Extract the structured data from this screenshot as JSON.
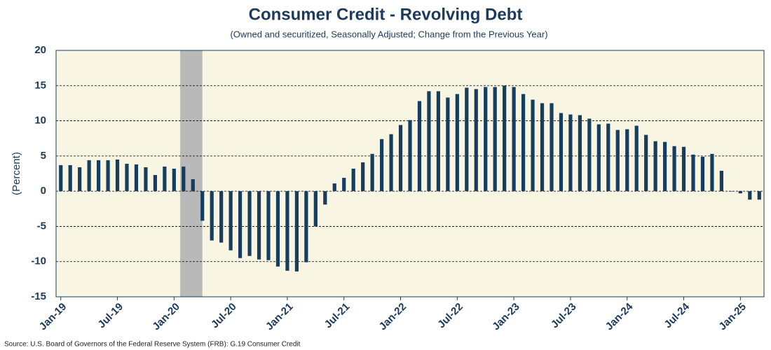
{
  "chart_data": {
    "type": "bar",
    "title": "Consumer Credit - Revolving Debt",
    "subtitle": "(Owned and securitized, Seasonally Adjusted; Change from the Previous Year)",
    "y_label": "(Percent)",
    "source": "Source: U.S. Board of Governors of the Federal Reserve System (FRB): G.19 Consumer Credit",
    "categories": [
      "Jan-19",
      null,
      null,
      null,
      null,
      null,
      "Jul-19",
      null,
      null,
      null,
      null,
      null,
      "Jan-20",
      null,
      null,
      null,
      null,
      null,
      "Jul-20",
      null,
      null,
      null,
      null,
      null,
      "Jan-21",
      null,
      null,
      null,
      null,
      null,
      "Jul-21",
      null,
      null,
      null,
      null,
      null,
      "Jan-22",
      null,
      null,
      null,
      null,
      null,
      "Jul-22",
      null,
      null,
      null,
      null,
      null,
      "Jan-23",
      null,
      null,
      null,
      null,
      null,
      "Jul-23",
      null,
      null,
      null,
      null,
      null,
      "Jan-24",
      null,
      null,
      null,
      null,
      null,
      "Jul-24",
      null,
      null,
      null,
      null,
      null,
      "Jan-25",
      null,
      null
    ],
    "values": [
      3.7,
      3.7,
      3.4,
      4.4,
      4.4,
      4.4,
      4.5,
      3.9,
      3.8,
      3.4,
      2.3,
      3.5,
      3.2,
      3.5,
      1.7,
      -4.2,
      -7,
      -7.3,
      -8.4,
      -9.5,
      -9.2,
      -9.7,
      -9.8,
      -10.7,
      -11.3,
      -11.4,
      -10.1,
      -5,
      -1.9,
      1.1,
      1.9,
      3.2,
      4.1,
      5.3,
      7.4,
      8.1,
      9.4,
      10.1,
      12.8,
      14.2,
      14.2,
      13.3,
      13.8,
      14.7,
      14.5,
      14.8,
      14.8,
      15,
      14.8,
      13.8,
      13,
      12.5,
      12.5,
      11.1,
      10.9,
      10.8,
      10.3,
      9.5,
      9.6,
      8.7,
      8.8,
      9.3,
      8,
      7.1,
      7,
      6.4,
      6.3,
      5.2,
      4.9,
      5.3,
      2.9,
      0,
      -0.3,
      -1.2,
      -1.2
    ],
    "color": "#173d5e",
    "recession": [
      13,
      15
    ],
    "recession_color": "#b9b9b9",
    "plot_background": "#f8f5e2",
    "ylim": [
      -15,
      20
    ],
    "yticks": [
      -15,
      -10,
      -5,
      0,
      5,
      10,
      15,
      20
    ],
    "grid": true
  }
}
